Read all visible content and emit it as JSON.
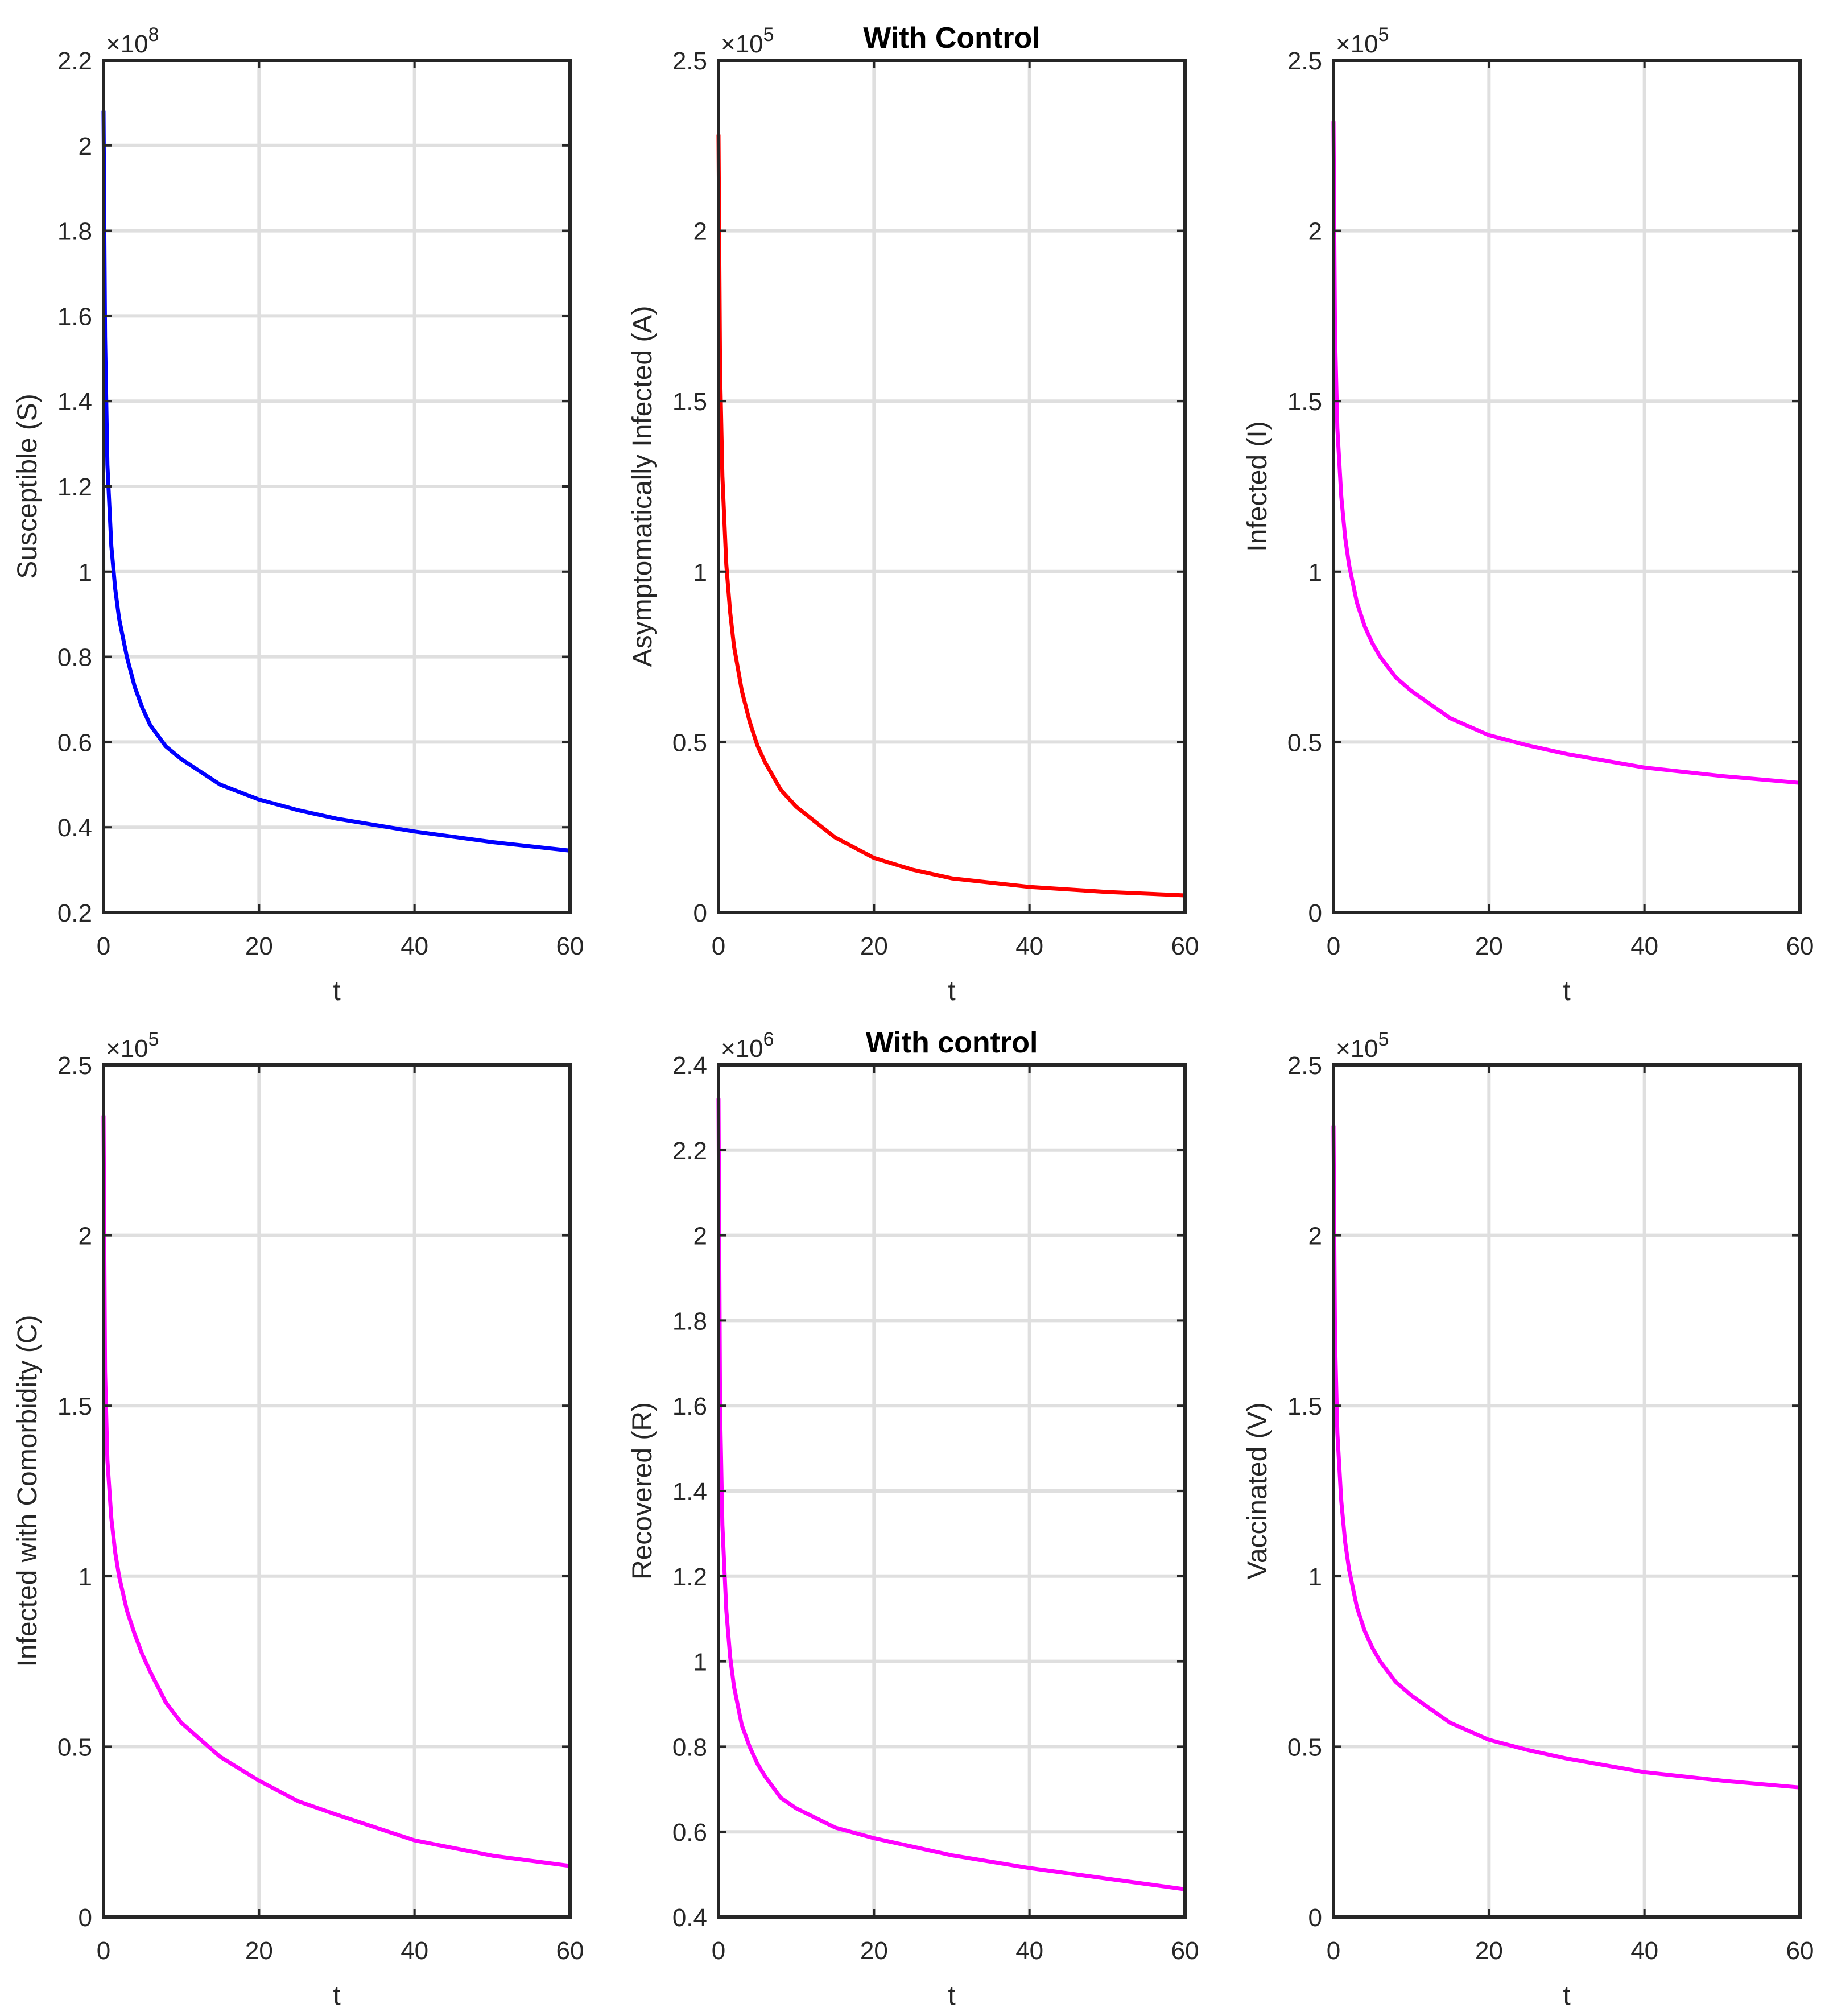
{
  "chart_data": [
    {
      "type": "line",
      "title": "",
      "xlabel": "t",
      "ylabel": "Susceptible (S)",
      "exponent_base": "×10",
      "exponent": "8",
      "xlim": [
        0,
        60
      ],
      "ylim": [
        0.2,
        2.2
      ],
      "xticks": [
        0,
        20,
        40,
        60
      ],
      "xtick_labels": [
        "0",
        "20",
        "40",
        "60"
      ],
      "yticks": [
        0.2,
        0.4,
        0.6,
        0.8,
        1,
        1.2,
        1.4,
        1.6,
        1.8,
        2,
        2.2
      ],
      "ytick_labels": [
        "0.2",
        "0.4",
        "0.6",
        "0.8",
        "1",
        "1.2",
        "1.4",
        "1.6",
        "1.8",
        "2",
        "2.2"
      ],
      "grid": true,
      "series": [
        {
          "name": "Susceptible (S)",
          "color": "#0000ff",
          "x": [
            0,
            0.2,
            0.5,
            1,
            1.5,
            2,
            3,
            4,
            5,
            6,
            8,
            10,
            15,
            20,
            25,
            30,
            40,
            50,
            60
          ],
          "y": [
            2.08,
            1.55,
            1.25,
            1.06,
            0.96,
            0.89,
            0.8,
            0.73,
            0.68,
            0.64,
            0.59,
            0.56,
            0.5,
            0.465,
            0.44,
            0.42,
            0.39,
            0.365,
            0.345
          ]
        }
      ]
    },
    {
      "type": "line",
      "title": "With Control",
      "xlabel": "t",
      "ylabel": "Asymptomatically Infected (A)",
      "exponent_base": "×10",
      "exponent": "5",
      "xlim": [
        0,
        60
      ],
      "ylim": [
        0,
        2.5
      ],
      "xticks": [
        0,
        20,
        40,
        60
      ],
      "xtick_labels": [
        "0",
        "20",
        "40",
        "60"
      ],
      "yticks": [
        0,
        0.5,
        1,
        1.5,
        2,
        2.5
      ],
      "ytick_labels": [
        "0",
        "0.5",
        "1",
        "1.5",
        "2",
        "2.5"
      ],
      "grid": true,
      "series": [
        {
          "name": "Asymptomatically Infected (A)",
          "color": "#ff0000",
          "x": [
            0,
            0.2,
            0.5,
            1,
            1.5,
            2,
            3,
            4,
            5,
            6,
            8,
            10,
            15,
            20,
            25,
            30,
            40,
            50,
            60
          ],
          "y": [
            2.28,
            1.6,
            1.28,
            1.02,
            0.88,
            0.78,
            0.65,
            0.56,
            0.49,
            0.44,
            0.36,
            0.31,
            0.22,
            0.16,
            0.125,
            0.1,
            0.075,
            0.06,
            0.05
          ]
        }
      ]
    },
    {
      "type": "line",
      "title": "",
      "xlabel": "t",
      "ylabel": "Infected (I)",
      "exponent_base": "×10",
      "exponent": "5",
      "xlim": [
        0,
        60
      ],
      "ylim": [
        0,
        2.5
      ],
      "xticks": [
        0,
        20,
        40,
        60
      ],
      "xtick_labels": [
        "0",
        "20",
        "40",
        "60"
      ],
      "yticks": [
        0,
        0.5,
        1,
        1.5,
        2,
        2.5
      ],
      "ytick_labels": [
        "0",
        "0.5",
        "1",
        "1.5",
        "2",
        "2.5"
      ],
      "grid": true,
      "series": [
        {
          "name": "Infected (I)",
          "color": "#ff00ff",
          "x": [
            0,
            0.2,
            0.5,
            1,
            1.5,
            2,
            3,
            4,
            5,
            6,
            8,
            10,
            15,
            20,
            25,
            30,
            40,
            50,
            60
          ],
          "y": [
            2.32,
            1.7,
            1.42,
            1.22,
            1.1,
            1.02,
            0.91,
            0.84,
            0.79,
            0.75,
            0.69,
            0.65,
            0.57,
            0.52,
            0.49,
            0.465,
            0.425,
            0.4,
            0.38
          ]
        }
      ]
    },
    {
      "type": "line",
      "title": "",
      "xlabel": "t",
      "ylabel": "Infected with Comorbidity (C)",
      "exponent_base": "×10",
      "exponent": "5",
      "xlim": [
        0,
        60
      ],
      "ylim": [
        0,
        2.5
      ],
      "xticks": [
        0,
        20,
        40,
        60
      ],
      "xtick_labels": [
        "0",
        "20",
        "40",
        "60"
      ],
      "yticks": [
        0,
        0.5,
        1,
        1.5,
        2,
        2.5
      ],
      "ytick_labels": [
        "0",
        "0.5",
        "1",
        "1.5",
        "2",
        "2.5"
      ],
      "grid": true,
      "series": [
        {
          "name": "Infected with Comorbidity (C)",
          "color": "#ff00ff",
          "x": [
            0,
            0.2,
            0.5,
            1,
            1.5,
            2,
            3,
            4,
            5,
            6,
            8,
            10,
            15,
            20,
            25,
            30,
            40,
            50,
            60
          ],
          "y": [
            2.35,
            1.6,
            1.34,
            1.17,
            1.07,
            1.0,
            0.9,
            0.83,
            0.77,
            0.72,
            0.63,
            0.57,
            0.47,
            0.4,
            0.34,
            0.3,
            0.225,
            0.18,
            0.15
          ]
        }
      ]
    },
    {
      "type": "line",
      "title": "With control",
      "xlabel": "t",
      "ylabel": "Recovered (R)",
      "exponent_base": "×10",
      "exponent": "6",
      "xlim": [
        0,
        60
      ],
      "ylim": [
        0.4,
        2.4
      ],
      "xticks": [
        0,
        20,
        40,
        60
      ],
      "xtick_labels": [
        "0",
        "20",
        "40",
        "60"
      ],
      "yticks": [
        0.4,
        0.6,
        0.8,
        1,
        1.2,
        1.4,
        1.6,
        1.8,
        2,
        2.2,
        2.4
      ],
      "ytick_labels": [
        "0.4",
        "0.6",
        "0.8",
        "1",
        "1.2",
        "1.4",
        "1.6",
        "1.8",
        "2",
        "2.2",
        "2.4"
      ],
      "grid": true,
      "series": [
        {
          "name": "Recovered (R)",
          "color": "#ff00ff",
          "x": [
            0,
            0.2,
            0.5,
            1,
            1.5,
            2,
            3,
            4,
            5,
            6,
            8,
            10,
            15,
            20,
            25,
            30,
            40,
            50,
            60
          ],
          "y": [
            2.32,
            1.6,
            1.32,
            1.12,
            1.01,
            0.94,
            0.85,
            0.8,
            0.76,
            0.73,
            0.68,
            0.655,
            0.61,
            0.585,
            0.565,
            0.545,
            0.515,
            0.49,
            0.465
          ]
        }
      ]
    },
    {
      "type": "line",
      "title": "",
      "xlabel": "t",
      "ylabel": "Vaccinated (V)",
      "exponent_base": "×10",
      "exponent": "5",
      "xlim": [
        0,
        60
      ],
      "ylim": [
        0,
        2.5
      ],
      "xticks": [
        0,
        20,
        40,
        60
      ],
      "xtick_labels": [
        "0",
        "20",
        "40",
        "60"
      ],
      "yticks": [
        0,
        0.5,
        1,
        1.5,
        2,
        2.5
      ],
      "ytick_labels": [
        "0",
        "0.5",
        "1",
        "1.5",
        "2",
        "2.5"
      ],
      "grid": true,
      "series": [
        {
          "name": "Vaccinated (V)",
          "color": "#ff00ff",
          "x": [
            0,
            0.2,
            0.5,
            1,
            1.5,
            2,
            3,
            4,
            5,
            6,
            8,
            10,
            15,
            20,
            25,
            30,
            40,
            50,
            60
          ],
          "y": [
            2.32,
            1.7,
            1.42,
            1.22,
            1.1,
            1.02,
            0.91,
            0.84,
            0.79,
            0.75,
            0.69,
            0.65,
            0.57,
            0.52,
            0.49,
            0.465,
            0.425,
            0.4,
            0.38
          ]
        }
      ]
    }
  ]
}
